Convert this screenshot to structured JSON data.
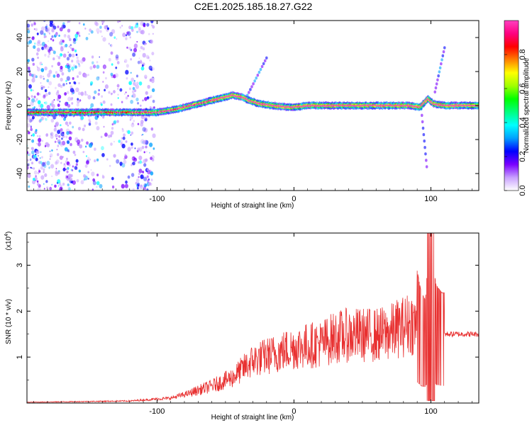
{
  "title": "C2E1.2025.185.18.27.G22",
  "chart_data": [
    {
      "type": "heatmap",
      "name": "spectrogram",
      "xlabel": "Height of straight line (km)",
      "ylabel": "Frequency (Hz)",
      "xlim": [
        -195,
        135
      ],
      "ylim": [
        -50,
        50
      ],
      "x_ticks": [
        -100,
        0,
        100
      ],
      "x_tick_labels": [
        "-100",
        "0",
        "100"
      ],
      "y_ticks": [
        40,
        20,
        0,
        -20,
        -40
      ],
      "y_tick_labels": [
        "40",
        "20",
        "0",
        "-20",
        "-40"
      ],
      "ridge": {
        "x": [
          -195,
          -180,
          -160,
          -140,
          -120,
          -100,
          -85,
          -70,
          -55,
          -45,
          -38,
          -33,
          -25,
          -15,
          -5,
          0,
          10,
          30,
          50,
          70,
          85,
          92,
          98,
          102,
          110,
          120,
          135
        ],
        "y": [
          -4,
          -4,
          -4,
          -4,
          -4,
          -4,
          -2,
          1,
          4,
          6,
          5,
          3,
          1,
          0,
          -1,
          -1,
          0,
          0,
          0,
          0,
          0,
          -1,
          4,
          1,
          0,
          0,
          0
        ]
      },
      "colorbar": {
        "label": "Normalized spectral amplitude",
        "range": [
          0,
          1
        ],
        "ticks": [
          0.0,
          0.2,
          0.4,
          0.6,
          0.8
        ],
        "tick_labels": [
          "0.0",
          "0.2",
          "0.4",
          "0.6",
          "0.8"
        ],
        "colors": [
          "#ffffff",
          "#c8a0ff",
          "#7a00ff",
          "#0000ff",
          "#00a0ff",
          "#00ffff",
          "#00ff80",
          "#00ff00",
          "#a0ff00",
          "#ffff00",
          "#ff8000",
          "#ff0000",
          "#ff0080",
          "#ff40c0"
        ]
      },
      "grid": false
    },
    {
      "type": "line",
      "name": "snr",
      "xlabel": "Height of straight line (km)",
      "ylabel": "SNR (10 * v/v)",
      "scale_label": "(x10",
      "scale_exponent": "4",
      "scale_close": ")",
      "xlim": [
        -195,
        135
      ],
      "ylim": [
        0,
        3.7
      ],
      "x_ticks": [
        -100,
        0,
        100
      ],
      "x_tick_labels": [
        "-100",
        "0",
        "100"
      ],
      "y_ticks": [
        1,
        2,
        3
      ],
      "y_tick_labels": [
        "1",
        "2",
        "3"
      ],
      "series_color": "#e83030",
      "envelope": {
        "x": [
          -195,
          -120,
          -90,
          -75,
          -60,
          -45,
          -30,
          -20,
          -10,
          0,
          10,
          20,
          30,
          40,
          50,
          60,
          70,
          75,
          80,
          85,
          90,
          93,
          96,
          98,
          100,
          102,
          104,
          108,
          112,
          120,
          135
        ],
        "y": [
          0.02,
          0.05,
          0.12,
          0.25,
          0.4,
          0.6,
          1.0,
          1.1,
          1.2,
          1.3,
          1.35,
          1.4,
          1.55,
          1.6,
          1.6,
          1.6,
          1.65,
          1.75,
          1.8,
          1.9,
          1.8,
          1.5,
          1.4,
          2.0,
          1.3,
          1.8,
          1.6,
          1.5,
          1.5,
          1.5,
          1.5
        ]
      },
      "grid": false
    }
  ]
}
